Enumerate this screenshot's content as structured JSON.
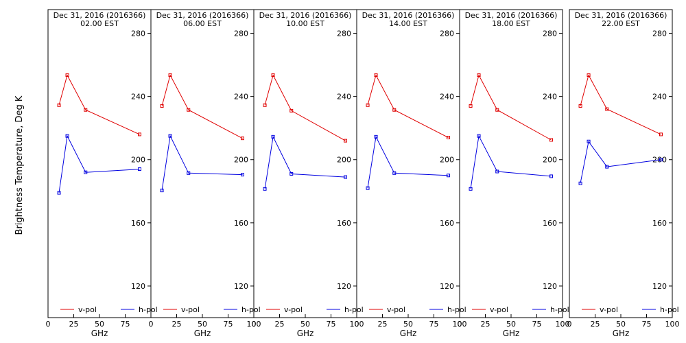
{
  "ylabel": "Brightness Temperature, Deg K",
  "colors": {
    "vpol": "#e00000",
    "hpol": "#0000e0",
    "axis": "#000000"
  },
  "chart_data": [
    {
      "type": "line",
      "title": "Dec 31, 2016 (2016366)",
      "subtitle": "02.00 EST",
      "xlabel": "GHz",
      "xlim": [
        0,
        100
      ],
      "xticks": [
        0,
        25,
        50,
        75
      ],
      "ylim": [
        100,
        295
      ],
      "yticks": [
        120,
        160,
        200,
        240,
        280
      ],
      "series": [
        {
          "name": "v-pol",
          "x": [
            10.7,
            18.7,
            36.5,
            89
          ],
          "y": [
            234.5,
            253.5,
            231.5,
            216
          ]
        },
        {
          "name": "h-pol",
          "x": [
            10.7,
            18.7,
            36.5,
            89
          ],
          "y": [
            179,
            215,
            192,
            194
          ]
        }
      ]
    },
    {
      "type": "line",
      "title": "Dec 31, 2016 (2016366)",
      "subtitle": "06.00 EST",
      "xlabel": "GHz",
      "xlim": [
        0,
        100
      ],
      "xticks": [
        0,
        25,
        50,
        75,
        100
      ],
      "ylim": [
        100,
        295
      ],
      "yticks": [
        120,
        160,
        200,
        240,
        280
      ],
      "series": [
        {
          "name": "v-pol",
          "x": [
            10.7,
            18.7,
            36.5,
            89
          ],
          "y": [
            234,
            253.5,
            231.5,
            213.5
          ]
        },
        {
          "name": "h-pol",
          "x": [
            10.7,
            18.7,
            36.5,
            89
          ],
          "y": [
            180.5,
            215,
            191.5,
            190.5
          ]
        }
      ]
    },
    {
      "type": "line",
      "title": "Dec 31, 2016 (2016366)",
      "subtitle": "10.00 EST",
      "xlabel": "GHz",
      "xlim": [
        0,
        100
      ],
      "xticks": [
        0,
        25,
        50,
        75,
        100
      ],
      "ylim": [
        100,
        295
      ],
      "yticks": [
        120,
        160,
        200,
        240,
        280
      ],
      "series": [
        {
          "name": "v-pol",
          "x": [
            10.7,
            18.7,
            36.5,
            89
          ],
          "y": [
            234.5,
            253.5,
            231,
            212
          ]
        },
        {
          "name": "h-pol",
          "x": [
            10.7,
            18.7,
            36.5,
            89
          ],
          "y": [
            181.5,
            214.5,
            191,
            189
          ]
        }
      ]
    },
    {
      "type": "line",
      "title": "Dec 31, 2016 (2016366)",
      "subtitle": "14.00 EST",
      "xlabel": "GHz",
      "xlim": [
        0,
        100
      ],
      "xticks": [
        0,
        25,
        50,
        75,
        100
      ],
      "ylim": [
        100,
        295
      ],
      "yticks": [
        120,
        160,
        200,
        240,
        280
      ],
      "series": [
        {
          "name": "v-pol",
          "x": [
            10.7,
            18.7,
            36.5,
            89
          ],
          "y": [
            234.5,
            253.5,
            231.5,
            214
          ]
        },
        {
          "name": "h-pol",
          "x": [
            10.7,
            18.7,
            36.5,
            89
          ],
          "y": [
            182,
            214.5,
            191.5,
            190
          ]
        }
      ]
    },
    {
      "type": "line",
      "title": "Dec 31, 2016 (2016366)",
      "subtitle": "18.00 EST",
      "xlabel": "GHz",
      "xlim": [
        0,
        100
      ],
      "xticks": [
        0,
        25,
        50,
        75,
        100
      ],
      "ylim": [
        100,
        295
      ],
      "yticks": [
        120,
        160,
        200,
        240,
        280
      ],
      "series": [
        {
          "name": "v-pol",
          "x": [
            10.7,
            18.7,
            36.5,
            89
          ],
          "y": [
            234,
            253.5,
            231.5,
            212.5
          ]
        },
        {
          "name": "h-pol",
          "x": [
            10.7,
            18.7,
            36.5,
            89
          ],
          "y": [
            181.5,
            215,
            192.5,
            189.5
          ]
        }
      ]
    },
    {
      "type": "line",
      "title": "Dec 31, 2016 (2016366)",
      "subtitle": "22.00 EST",
      "xlabel": "GHz",
      "xlim": [
        0,
        100
      ],
      "xticks": [
        0,
        25,
        50,
        75,
        100
      ],
      "ylim": [
        100,
        295
      ],
      "yticks": [
        120,
        160,
        200,
        240,
        280
      ],
      "series": [
        {
          "name": "v-pol",
          "x": [
            10.7,
            18.7,
            36.5,
            89
          ],
          "y": [
            234,
            253.5,
            232,
            216
          ]
        },
        {
          "name": "h-pol",
          "x": [
            10.7,
            18.7,
            36.5,
            89
          ],
          "y": [
            185,
            211.5,
            195.5,
            200
          ]
        }
      ]
    }
  ]
}
